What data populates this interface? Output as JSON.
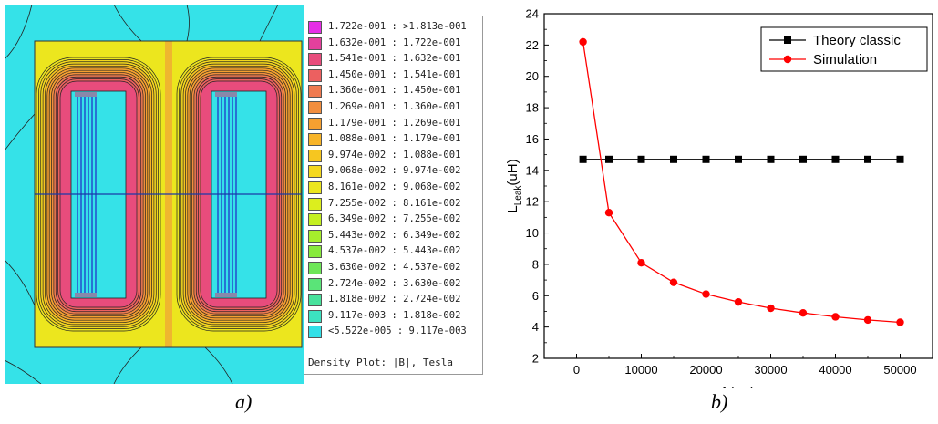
{
  "panel_a": {
    "label": "a)",
    "legend": {
      "title": "Density Plot: |B|, Tesla",
      "entries": [
        {
          "text": "1.722e-001 : >1.813e-001",
          "color": "#e62ee6"
        },
        {
          "text": "1.632e-001 : 1.722e-001",
          "color": "#e3409c"
        },
        {
          "text": "1.541e-001 : 1.632e-001",
          "color": "#e84c7c"
        },
        {
          "text": "1.450e-001 : 1.541e-001",
          "color": "#ec6060"
        },
        {
          "text": "1.360e-001 : 1.450e-001",
          "color": "#ef7a50"
        },
        {
          "text": "1.269e-001 : 1.360e-001",
          "color": "#f28e3e"
        },
        {
          "text": "1.179e-001 : 1.269e-001",
          "color": "#f5a030"
        },
        {
          "text": "1.088e-001 : 1.179e-001",
          "color": "#f7b428"
        },
        {
          "text": "9.974e-002 : 1.088e-001",
          "color": "#f6c620"
        },
        {
          "text": "9.068e-002 : 9.974e-002",
          "color": "#f4d81e"
        },
        {
          "text": "8.161e-002 : 9.068e-002",
          "color": "#ece61e"
        },
        {
          "text": "7.255e-002 : 8.161e-002",
          "color": "#dcee1e"
        },
        {
          "text": "6.349e-002 : 7.255e-002",
          "color": "#c4f020"
        },
        {
          "text": "5.443e-002 : 6.349e-002",
          "color": "#a6ee2c"
        },
        {
          "text": "4.537e-002 : 5.443e-002",
          "color": "#88ea3c"
        },
        {
          "text": "3.630e-002 : 4.537e-002",
          "color": "#6ee658"
        },
        {
          "text": "2.724e-002 : 3.630e-002",
          "color": "#5ae478"
        },
        {
          "text": "1.818e-002 : 2.724e-002",
          "color": "#48e29c"
        },
        {
          "text": "9.117e-003 : 1.818e-002",
          "color": "#3ce2c0"
        },
        {
          "text": "<5.522e-005 : 9.117e-003",
          "color": "#33e0e8"
        }
      ]
    }
  },
  "panel_b": {
    "label": "b)"
  },
  "chart_data": {
    "type": "line",
    "xlabel": "f (Hz)",
    "ylabel": "L",
    "ylabel_sub": "Leak",
    "ylabel_unit": "(uH)",
    "xlim": [
      -5000,
      55000
    ],
    "ylim": [
      2,
      24
    ],
    "xticks": [
      0,
      10000,
      20000,
      30000,
      40000,
      50000
    ],
    "yticks": [
      2,
      4,
      6,
      8,
      10,
      12,
      14,
      16,
      18,
      20,
      22,
      24
    ],
    "legend_position": "top-right",
    "series": [
      {
        "name": "Theory classic",
        "color": "#000000",
        "marker": "square",
        "x": [
          1000,
          5000,
          10000,
          15000,
          20000,
          25000,
          30000,
          35000,
          40000,
          45000,
          50000
        ],
        "y": [
          14.7,
          14.7,
          14.7,
          14.7,
          14.7,
          14.7,
          14.7,
          14.7,
          14.7,
          14.7,
          14.7
        ]
      },
      {
        "name": "Simulation",
        "color": "#ff0000",
        "marker": "circle",
        "x": [
          1000,
          5000,
          10000,
          15000,
          20000,
          25000,
          30000,
          35000,
          40000,
          45000,
          50000
        ],
        "y": [
          22.2,
          11.3,
          8.1,
          6.85,
          6.1,
          5.6,
          5.2,
          4.9,
          4.65,
          4.45,
          4.3
        ]
      }
    ]
  }
}
